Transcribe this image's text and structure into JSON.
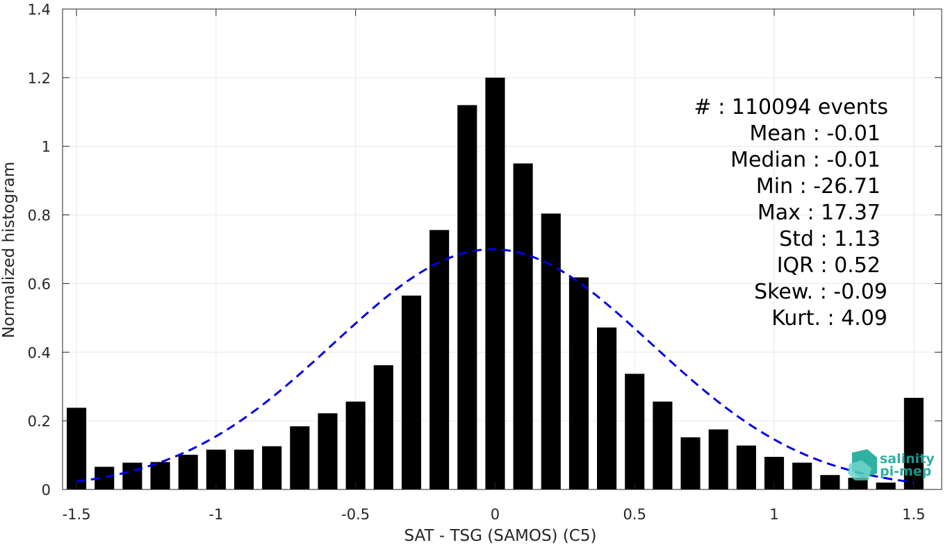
{
  "chart_data": {
    "type": "bar",
    "title": "",
    "xlabel": "SAT - TSG (SAMOS) (C5)",
    "ylabel": "Normalized histogram",
    "xlim": [
      -1.55,
      1.6
    ],
    "ylim": [
      0,
      1.4
    ],
    "grid": true,
    "x_ticks": [
      {
        "value": -1.5,
        "label": "-1.5"
      },
      {
        "value": -1,
        "label": "-1"
      },
      {
        "value": -0.5,
        "label": "-0.5"
      },
      {
        "value": 0,
        "label": "0"
      },
      {
        "value": 0.5,
        "label": "0.5"
      },
      {
        "value": 1,
        "label": "1"
      },
      {
        "value": 1.5,
        "label": "1.5"
      }
    ],
    "y_ticks": [
      {
        "value": 0,
        "label": "0"
      },
      {
        "value": 0.2,
        "label": "0.2"
      },
      {
        "value": 0.4,
        "label": "0.4"
      },
      {
        "value": 0.6,
        "label": "0.6"
      },
      {
        "value": 0.8,
        "label": "0.8"
      },
      {
        "value": 1,
        "label": "1"
      },
      {
        "value": 1.2,
        "label": "1.2"
      },
      {
        "value": 1.4,
        "label": "1.4"
      }
    ],
    "bar_width": 0.07,
    "bars": [
      {
        "x": -1.5,
        "y": 0.238
      },
      {
        "x": -1.4,
        "y": 0.066
      },
      {
        "x": -1.3,
        "y": 0.078
      },
      {
        "x": -1.2,
        "y": 0.08
      },
      {
        "x": -1.1,
        "y": 0.101
      },
      {
        "x": -1.0,
        "y": 0.116
      },
      {
        "x": -0.9,
        "y": 0.116
      },
      {
        "x": -0.8,
        "y": 0.126
      },
      {
        "x": -0.7,
        "y": 0.184
      },
      {
        "x": -0.6,
        "y": 0.222
      },
      {
        "x": -0.5,
        "y": 0.256
      },
      {
        "x": -0.4,
        "y": 0.362
      },
      {
        "x": -0.3,
        "y": 0.565
      },
      {
        "x": -0.2,
        "y": 0.756
      },
      {
        "x": -0.1,
        "y": 1.12
      },
      {
        "x": 0.0,
        "y": 1.2
      },
      {
        "x": 0.1,
        "y": 0.95
      },
      {
        "x": 0.2,
        "y": 0.804
      },
      {
        "x": 0.3,
        "y": 0.618
      },
      {
        "x": 0.4,
        "y": 0.472
      },
      {
        "x": 0.5,
        "y": 0.337
      },
      {
        "x": 0.6,
        "y": 0.256
      },
      {
        "x": 0.7,
        "y": 0.152
      },
      {
        "x": 0.8,
        "y": 0.175
      },
      {
        "x": 0.9,
        "y": 0.128
      },
      {
        "x": 1.0,
        "y": 0.095
      },
      {
        "x": 1.1,
        "y": 0.078
      },
      {
        "x": 1.2,
        "y": 0.042
      },
      {
        "x": 1.3,
        "y": 0.034
      },
      {
        "x": 1.4,
        "y": 0.02
      },
      {
        "x": 1.5,
        "y": 0.267
      }
    ],
    "gaussian_fit": {
      "mean": -0.01,
      "peak": 0.7,
      "sigma": 0.57,
      "x_range": [
        -1.5,
        1.5
      ],
      "color": "#0000e6",
      "style": "dashed"
    },
    "bar_color": "#000000",
    "stats_annotation": [
      "#  : 110094 events",
      "Mean : -0.01",
      "Median : -0.01",
      "Min : -26.71",
      "Max : 17.37",
      "Std : 1.13",
      "IQR : 0.52",
      "Skew. : -0.09",
      "Kurt. : 4.09"
    ]
  },
  "logo": {
    "line1": "salinity",
    "line2": "pi-mep",
    "color": "#1aa79a"
  }
}
